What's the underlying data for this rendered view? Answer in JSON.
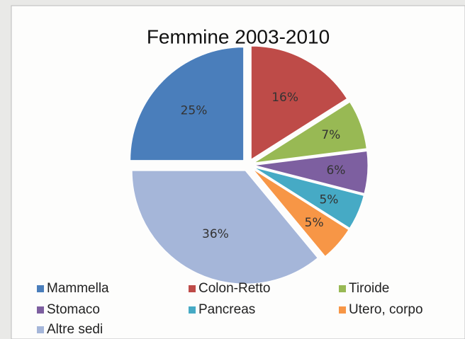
{
  "chart_data": {
    "type": "pie",
    "title": "Femmine 2003-2010",
    "categories": [
      "Mammella",
      "Colon-Retto",
      "Tiroide",
      "Stomaco",
      "Pancreas",
      "Utero, corpo",
      "Altre sedi"
    ],
    "values": [
      25,
      16,
      7,
      6,
      5,
      5,
      36
    ],
    "value_labels": [
      "25%",
      "16%",
      "7%",
      "6%",
      "5%",
      "5%",
      "36%"
    ],
    "colors": [
      "#4a7ebb",
      "#be4b48",
      "#98b954",
      "#7d5fa0",
      "#46aac5",
      "#f79646",
      "#a5b6d9"
    ],
    "legend": "bottom"
  }
}
